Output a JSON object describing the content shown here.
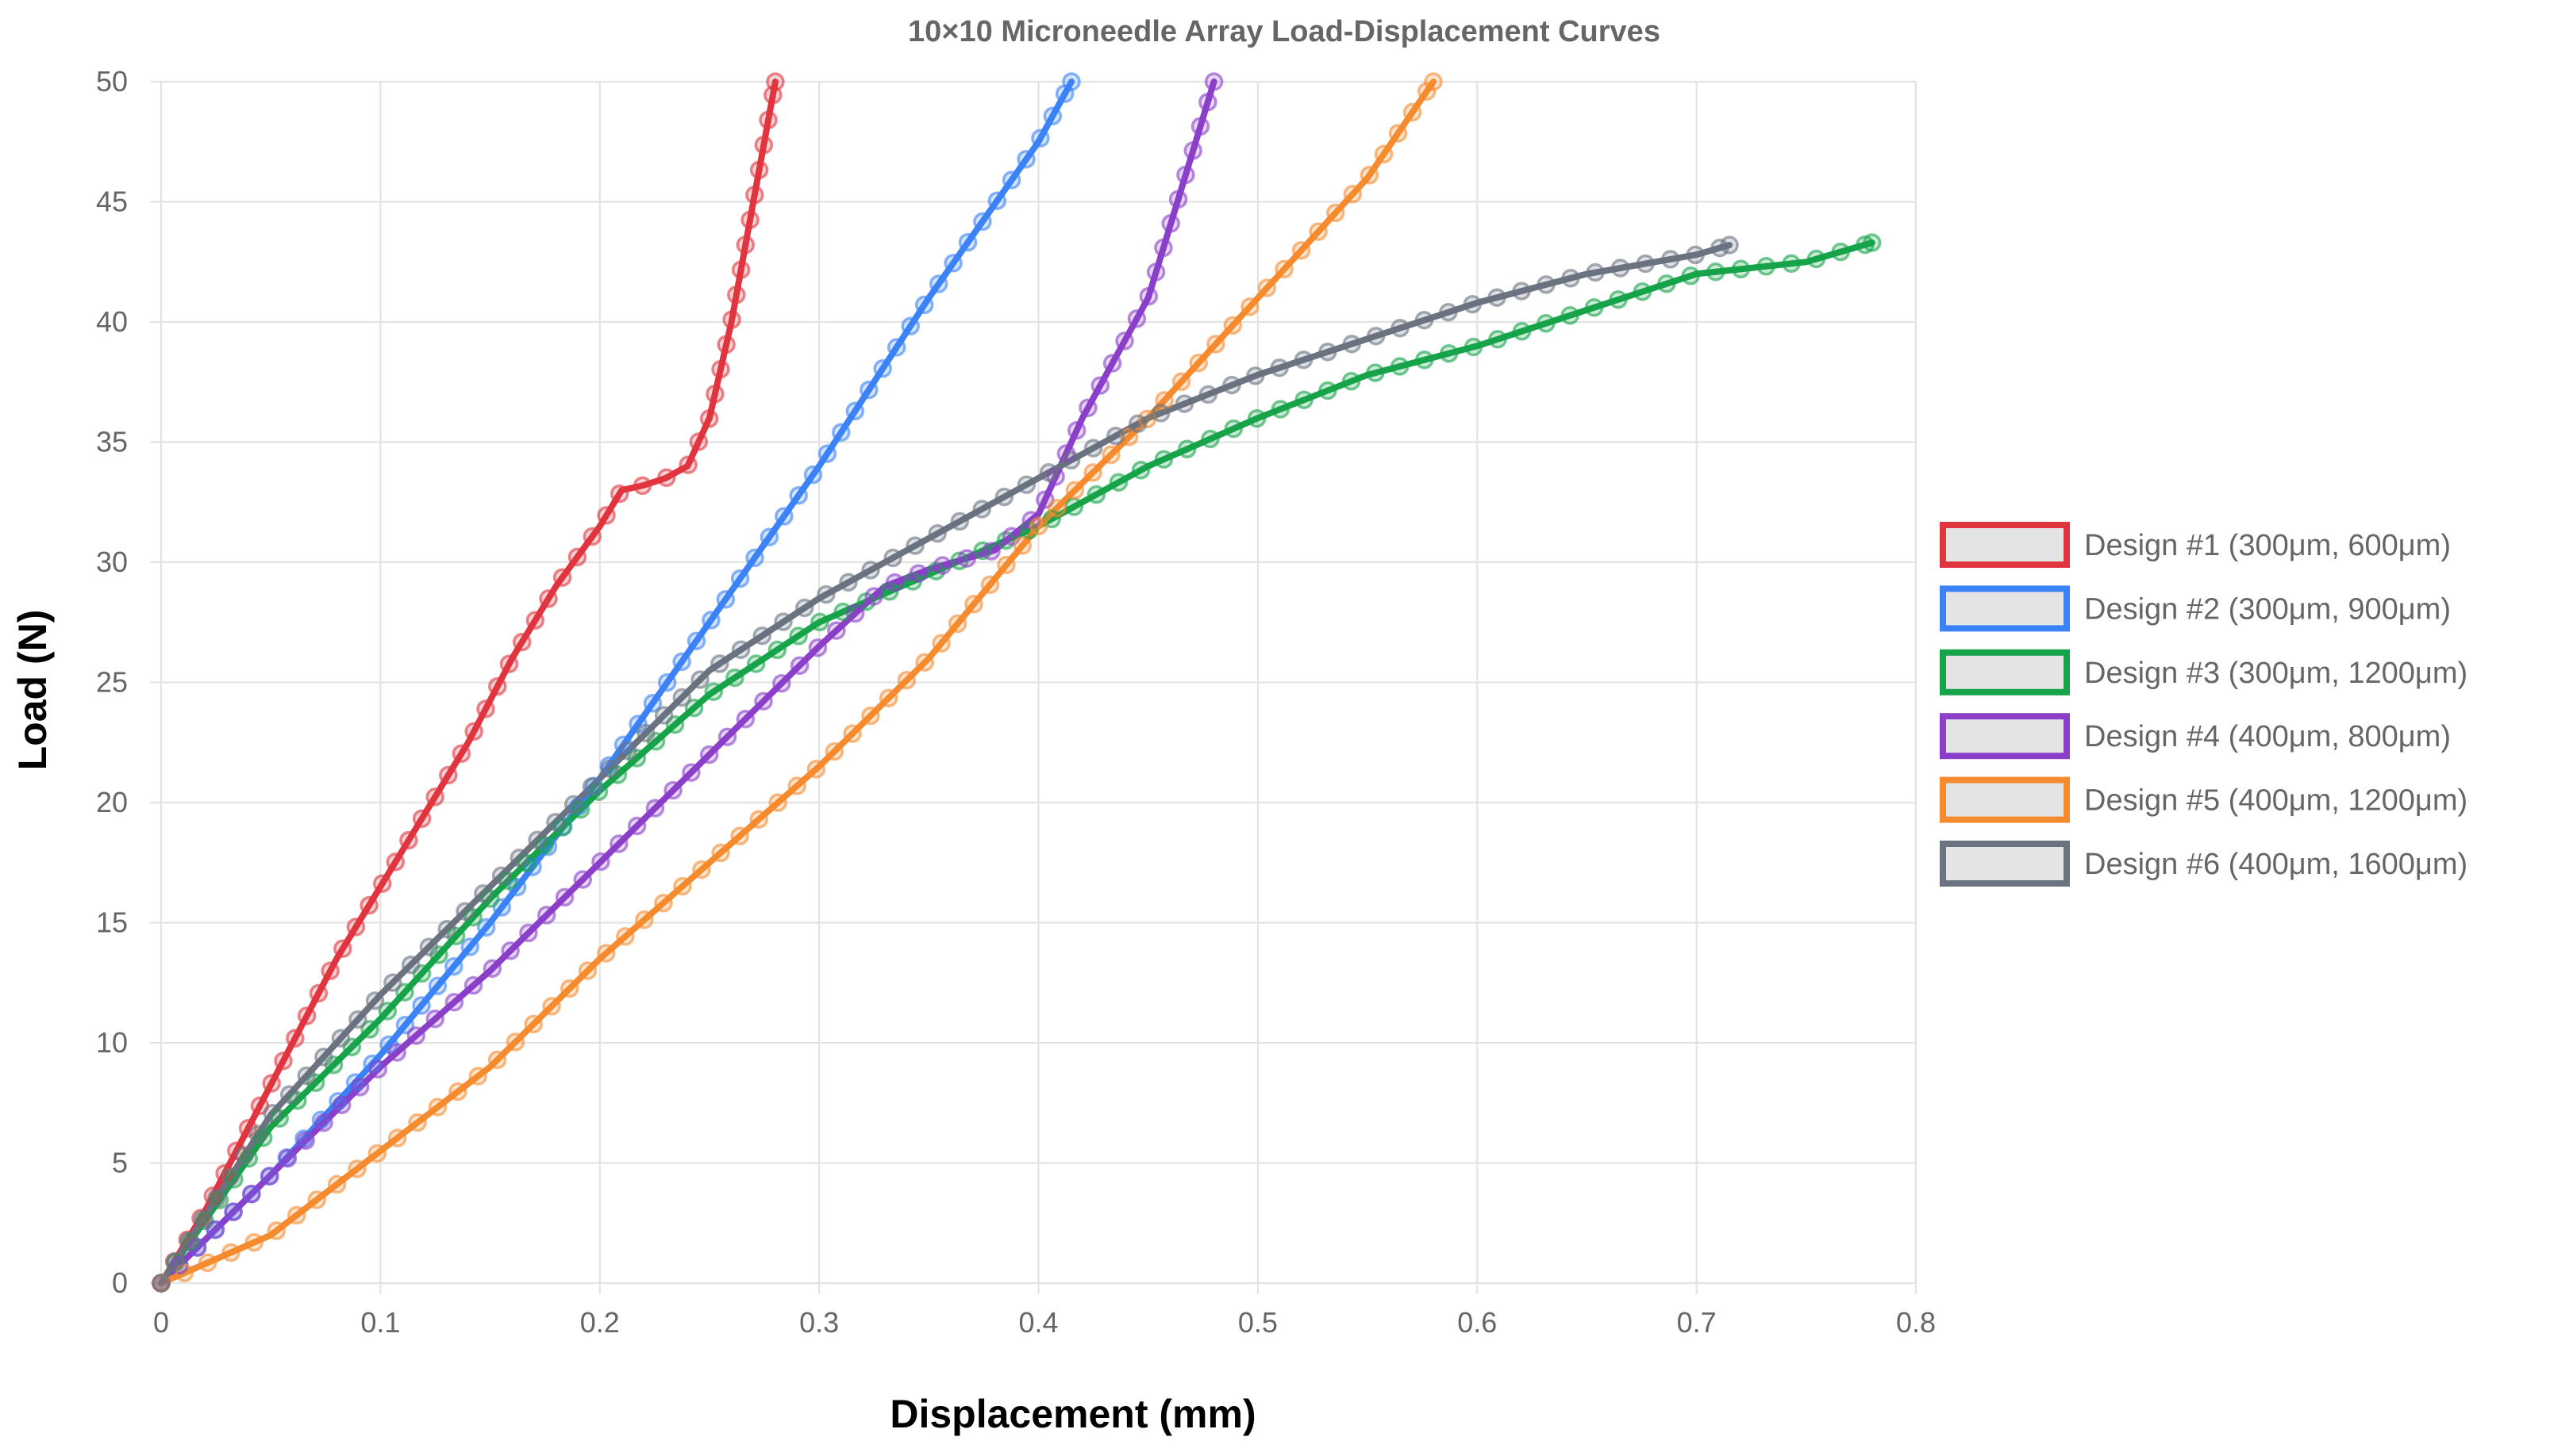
{
  "chart_data": {
    "type": "line",
    "title": "10×10 Microneedle Array Load-Displacement Curves",
    "xlabel": "Displacement (mm)",
    "ylabel": "Load (N)",
    "xlim": [
      0,
      0.8
    ],
    "ylim": [
      0,
      50
    ],
    "x_ticks": [
      0,
      0.1,
      0.2,
      0.3,
      0.4,
      0.5,
      0.6,
      0.7,
      0.8
    ],
    "x_tick_labels": [
      "0",
      "0.1",
      "0.2",
      "0.3",
      "0.4",
      "0.5",
      "0.6",
      "0.7",
      "0.8"
    ],
    "y_ticks": [
      0,
      5,
      10,
      15,
      20,
      25,
      30,
      35,
      40,
      45,
      50
    ],
    "y_tick_labels": [
      "0",
      "5",
      "10",
      "15",
      "20",
      "25",
      "30",
      "35",
      "40",
      "45",
      "50"
    ],
    "grid": true,
    "legend_position": "right",
    "series": [
      {
        "name": "Design #1 (300μm, 600μm)",
        "color": "#e0353f",
        "x": [
          0,
          0.02,
          0.04,
          0.06,
          0.08,
          0.1,
          0.12,
          0.14,
          0.16,
          0.18,
          0.2,
          0.21,
          0.22,
          0.23,
          0.24,
          0.25,
          0.26,
          0.27,
          0.28
        ],
        "y": [
          0,
          3,
          6.5,
          10,
          13.5,
          16.5,
          19.5,
          22.5,
          26,
          29,
          31.5,
          33,
          33.2,
          33.5,
          34,
          36,
          40,
          45,
          50
        ]
      },
      {
        "name": "Design #2 (300μm, 900μm)",
        "color": "#3b82f6",
        "x": [
          0,
          0.05,
          0.1,
          0.15,
          0.2,
          0.25,
          0.3,
          0.35,
          0.4,
          0.415
        ],
        "y": [
          0,
          4.5,
          9.5,
          15,
          21,
          27.5,
          34,
          41,
          47.5,
          50
        ]
      },
      {
        "name": "Design #3 (300μm, 1200μm)",
        "color": "#16a34a",
        "x": [
          0,
          0.05,
          0.1,
          0.15,
          0.2,
          0.25,
          0.3,
          0.35,
          0.4,
          0.45,
          0.5,
          0.55,
          0.6,
          0.65,
          0.7,
          0.75,
          0.78
        ],
        "y": [
          0,
          6.5,
          11,
          16,
          20.5,
          24.5,
          27.5,
          29.5,
          31.5,
          34,
          36,
          37.8,
          39,
          40.5,
          42,
          42.5,
          43.3
        ]
      },
      {
        "name": "Design #4 (400μm, 800μm)",
        "color": "#8b3fc9",
        "x": [
          0,
          0.05,
          0.1,
          0.15,
          0.2,
          0.25,
          0.3,
          0.33,
          0.35,
          0.38,
          0.4,
          0.42,
          0.45,
          0.47,
          0.48
        ],
        "y": [
          0,
          4.5,
          9,
          13,
          17.5,
          22,
          26.5,
          29,
          29.7,
          30.5,
          32,
          36,
          41,
          47,
          50
        ]
      },
      {
        "name": "Design #5 (400μm, 1200μm)",
        "color": "#f58b2e",
        "x": [
          0,
          0.05,
          0.1,
          0.15,
          0.2,
          0.25,
          0.3,
          0.35,
          0.4,
          0.45,
          0.5,
          0.55,
          0.58
        ],
        "y": [
          0,
          2,
          5.5,
          9,
          13.5,
          17.5,
          21.5,
          26,
          31.5,
          36,
          41,
          46,
          50
        ]
      },
      {
        "name": "Design #6 (400μm, 1600μm)",
        "color": "#6b7380",
        "x": [
          0,
          0.05,
          0.1,
          0.15,
          0.2,
          0.25,
          0.3,
          0.35,
          0.4,
          0.45,
          0.5,
          0.55,
          0.6,
          0.65,
          0.7,
          0.715
        ],
        "y": [
          0,
          7,
          12,
          16.5,
          21,
          25.5,
          28.5,
          31,
          33.5,
          36,
          37.8,
          39.3,
          40.8,
          42,
          42.8,
          43.2
        ]
      }
    ]
  }
}
